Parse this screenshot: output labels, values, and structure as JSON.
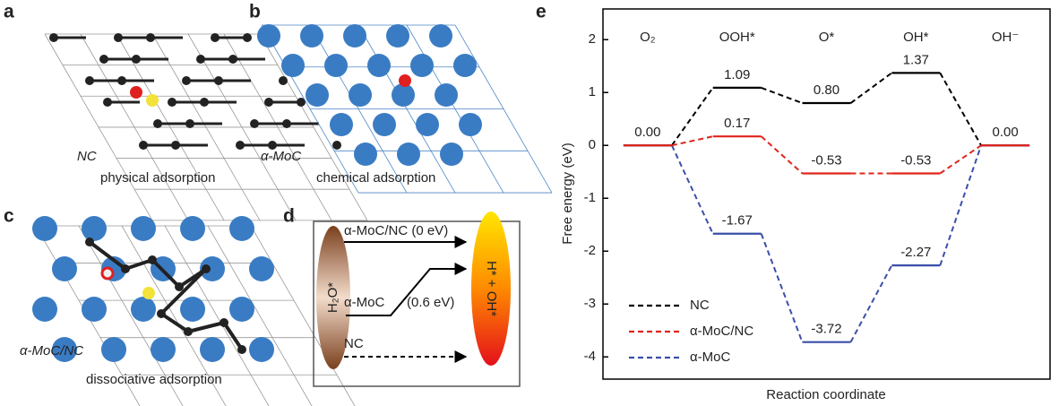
{
  "panels": {
    "a": {
      "label": "a",
      "name": "NC",
      "caption": "physical adsorption"
    },
    "b": {
      "label": "b",
      "name": "α-MoC",
      "caption": "chemical adsorption"
    },
    "c": {
      "label": "c",
      "name": "α-MoC/NC",
      "caption": "dissociative adsorption"
    },
    "d": {
      "label": "d",
      "reactant": "H₂O*",
      "product": "H* + OH*",
      "paths": [
        {
          "text": "α-MoC/NC (0 eV)"
        },
        {
          "text": "α-MoC",
          "barrier": "(0.6 eV)"
        },
        {
          "text": "NC"
        }
      ]
    }
  },
  "chart_data": {
    "type": "level",
    "label": "e",
    "x_label": "Reaction coordinate",
    "y_label": "Free energy (eV)",
    "categories": [
      "O₂",
      "OOH*",
      "O*",
      "OH*",
      "OH⁻"
    ],
    "series": [
      {
        "name": "NC",
        "color": "#000000",
        "values": [
          0.0,
          1.09,
          0.8,
          1.37,
          0.0
        ],
        "value_labels": [
          null,
          "1.09",
          "0.80",
          "1.37",
          null
        ]
      },
      {
        "name": "α-MoC",
        "color": "#3a4fa8",
        "values": [
          0.0,
          -1.67,
          -3.72,
          -2.27,
          0.0
        ],
        "value_labels": [
          null,
          "-1.67",
          "-3.72",
          "-2.27",
          null
        ]
      },
      {
        "name": "α-MoC/NC",
        "color": "#e0241b",
        "values": [
          0.0,
          0.17,
          -0.53,
          -0.53,
          0.0
        ],
        "value_labels": [
          "0.00",
          "0.17",
          "-0.53",
          "-0.53",
          "0.00"
        ]
      }
    ],
    "legend_order": [
      "NC",
      "α-MoC/NC",
      "α-MoC"
    ],
    "legend": "lower left",
    "ylim": [
      -4.42,
      2.58
    ],
    "yticks": [
      -4,
      -3,
      -2,
      -1,
      0,
      1,
      2
    ]
  }
}
